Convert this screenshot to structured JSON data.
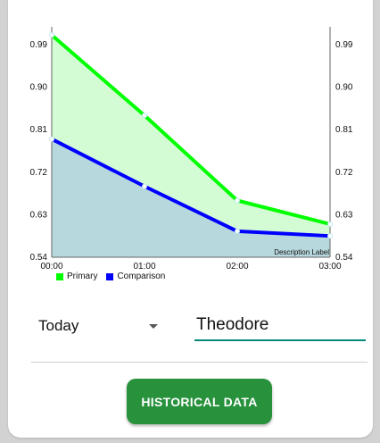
{
  "chart_data": {
    "type": "area",
    "categories": [
      "00:00",
      "01:00",
      "02:00",
      "03:00"
    ],
    "series": [
      {
        "name": "Primary",
        "values": [
          1.01,
          0.84,
          0.66,
          0.61
        ],
        "color": "#00ff00",
        "fill": "#d4fcd4"
      },
      {
        "name": "Comparison",
        "values": [
          0.79,
          0.69,
          0.595,
          0.585
        ],
        "color": "#0000ff",
        "fill": "#b7d8dd"
      }
    ],
    "y_ticks": [
      "0.99",
      "0.90",
      "0.81",
      "0.72",
      "0.63",
      "0.54"
    ],
    "ylim": [
      0.54,
      1.02
    ],
    "description_label": "Description Label",
    "grid": false,
    "legend_position": "bottom-left"
  },
  "controls": {
    "period_select": {
      "value": "Today"
    },
    "name_input": {
      "value": "Theodore"
    },
    "historical_button": {
      "label": "HISTORICAL DATA"
    }
  },
  "colors": {
    "button": "#27913c",
    "input_underline": "#00897b"
  }
}
